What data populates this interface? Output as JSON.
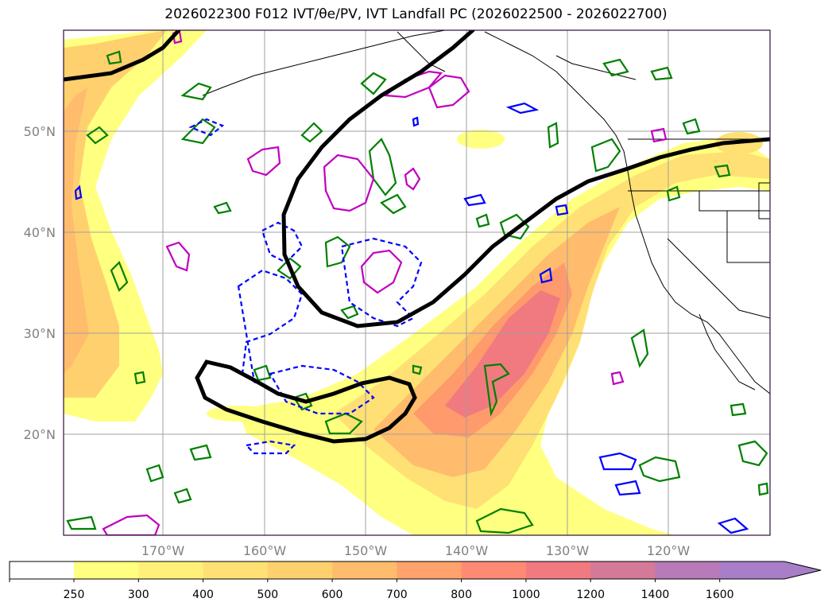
{
  "title": "2026022300 F012 IVT/θe/PV, IVT Landfall PC (2026022500 - 2026022700)",
  "map": {
    "lat_labels": [
      "50°N",
      "40°N",
      "30°N",
      "20°N"
    ],
    "lon_labels": [
      "170°W",
      "160°W",
      "150°W",
      "140°W",
      "130°W",
      "120°W"
    ],
    "frame_color": "#2d0f3a",
    "coast_color": "#000000",
    "contour_colors": {
      "landfall_pc": "#000000",
      "theta_e": "#0000ff",
      "pv_green": "#008000",
      "pv_magenta": "#c000c0"
    }
  },
  "colorbar": {
    "ticks": [
      "250",
      "300",
      "400",
      "500",
      "600",
      "700",
      "800",
      "1000",
      "1200",
      "1400",
      "1600"
    ],
    "colors": [
      "#ffff80",
      "#fff07a",
      "#ffe074",
      "#ffd06e",
      "#ffbc6c",
      "#ffa26c",
      "#ff8a74",
      "#f07a80",
      "#d47a98",
      "#b87ab8",
      "#a87ec8"
    ],
    "extend": "max"
  }
}
